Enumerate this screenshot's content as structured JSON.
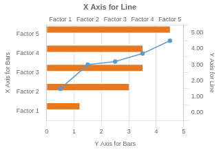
{
  "chart_data": {
    "type": "bar",
    "orientation": "horizontal",
    "title": "X Axis for Line",
    "categories": [
      "Factor 1",
      "Factor 2",
      "Factor 3",
      "Factor 4",
      "Factor 5"
    ],
    "xlabel": "Y Axis for Bars",
    "ylabel": "X Axis for Bars",
    "y2label": "Y Axis for Line",
    "xlim": [
      0,
      5
    ],
    "xticks": [
      0,
      1,
      2,
      3,
      4,
      5
    ],
    "x2lim": [
      0,
      5
    ],
    "x2ticks": [
      {
        "value": 0.5,
        "label": "Factor 1"
      },
      {
        "value": 1.5,
        "label": "Factor 2"
      },
      {
        "value": 2.5,
        "label": "Factor 3"
      },
      {
        "value": 3.5,
        "label": "Factor 4"
      },
      {
        "value": 4.5,
        "label": "Factor 5"
      }
    ],
    "y2lim": [
      0.0,
      5.0
    ],
    "y2ticks": [
      {
        "value": 0,
        "label": "0.00"
      },
      {
        "value": 1,
        "label": "1.00"
      },
      {
        "value": 2,
        "label": "2.00"
      },
      {
        "value": 3,
        "label": "3.00"
      },
      {
        "value": 4,
        "label": "4.00"
      },
      {
        "value": 5,
        "label": "5.00"
      }
    ],
    "grid": true,
    "series": [
      {
        "type": "bar",
        "color": "#E8771E",
        "values": [
          1.2,
          3.0,
          3.5,
          3.5,
          4.5
        ]
      },
      {
        "type": "line",
        "color": "#5B9BD5",
        "marker": "circle",
        "axis": "y2",
        "x": [
          0.5,
          1.5,
          2.5,
          3.5,
          4.5
        ],
        "values": [
          1.5,
          3.0,
          3.2,
          3.7,
          4.5
        ]
      }
    ]
  }
}
